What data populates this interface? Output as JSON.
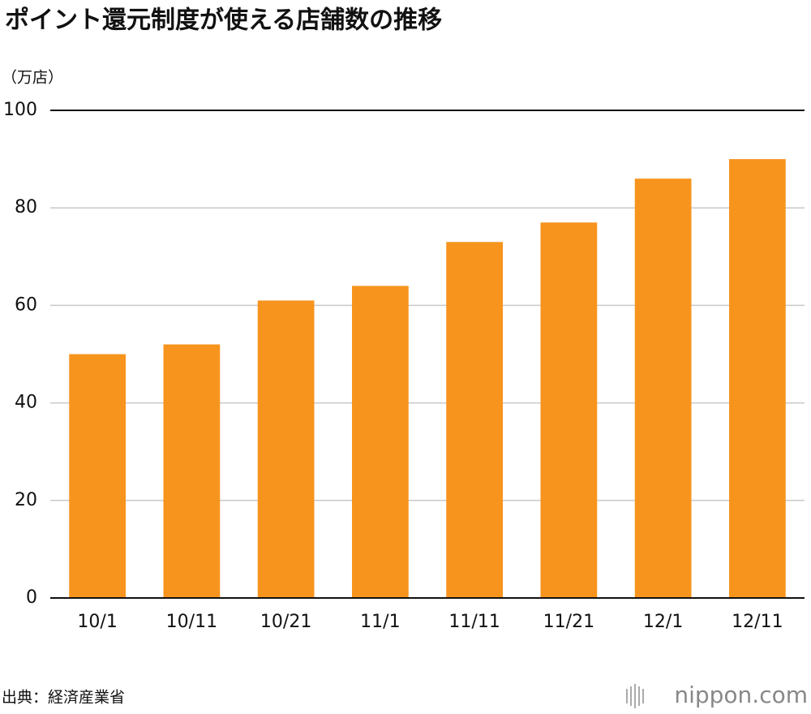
{
  "chart_data": {
    "type": "bar",
    "title": "ポイント還元制度が使える店舗数の推移",
    "y_label": "（万店）",
    "categories": [
      "10/1",
      "10/11",
      "10/21",
      "11/1",
      "11/11",
      "11/21",
      "12/1",
      "12/11"
    ],
    "values": [
      50,
      52,
      61,
      64,
      73,
      77,
      86,
      90
    ],
    "color": "#f7941d",
    "ylim": [
      0,
      100
    ],
    "yticks": [
      0,
      20,
      40,
      60,
      80,
      100
    ],
    "grid": true,
    "source": "出典：経済産業省",
    "logo": "nippon.com"
  }
}
